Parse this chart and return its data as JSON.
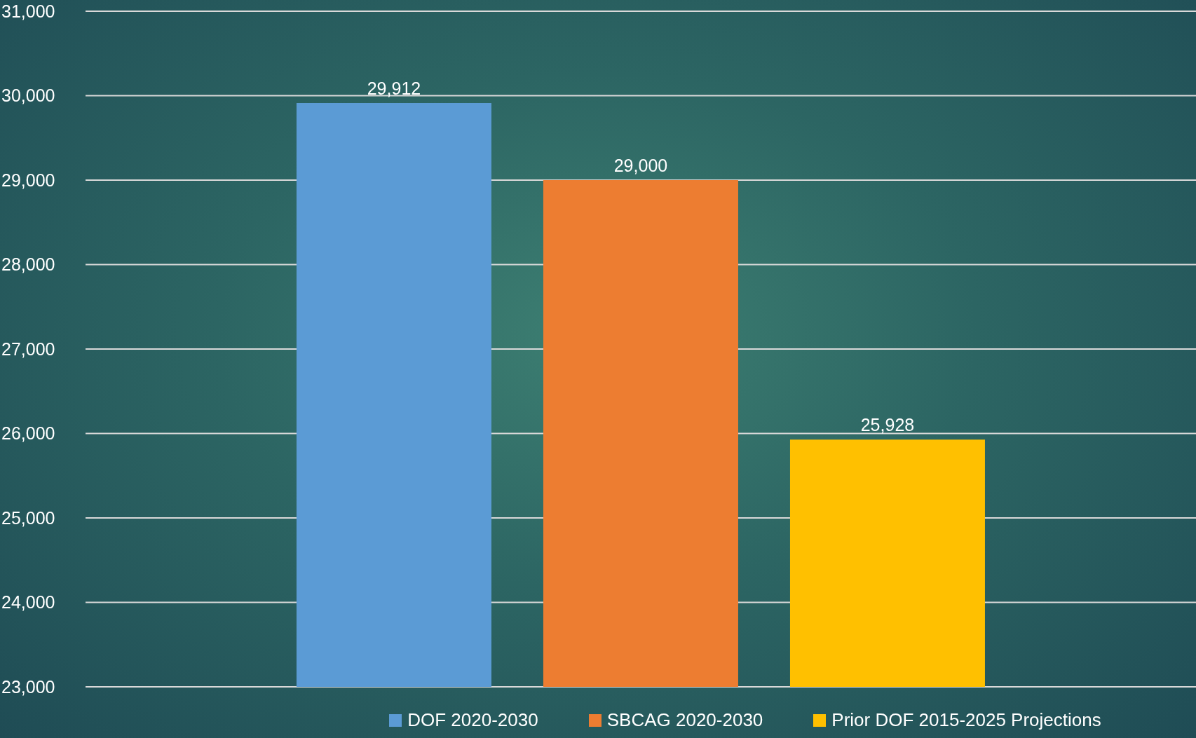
{
  "chart_data": {
    "type": "bar",
    "categories": [
      null
    ],
    "series": [
      {
        "name": "DOF 2020-2030",
        "color": "#5b9bd5",
        "values": [
          29912
        ],
        "value_labels": [
          "29,912"
        ]
      },
      {
        "name": "SBCAG 2020-2030",
        "color": "#ed7d31",
        "values": [
          29000
        ],
        "value_labels": [
          "29,000"
        ]
      },
      {
        "name": "Prior DOF 2015-2025 Projections",
        "color": "#ffc000",
        "values": [
          25928
        ],
        "value_labels": [
          "25,928"
        ]
      }
    ],
    "ylim": [
      23000,
      31000
    ],
    "yticks": [
      {
        "value": 23000,
        "label": "23,000"
      },
      {
        "value": 24000,
        "label": "24,000"
      },
      {
        "value": 25000,
        "label": "25,000"
      },
      {
        "value": 26000,
        "label": "26,000"
      },
      {
        "value": 27000,
        "label": "27,000"
      },
      {
        "value": 28000,
        "label": "28,000"
      },
      {
        "value": 29000,
        "label": "29,000"
      },
      {
        "value": 30000,
        "label": "30,000"
      },
      {
        "value": 31000,
        "label": "31,000"
      }
    ],
    "grid": "y",
    "legend": "bottom"
  }
}
